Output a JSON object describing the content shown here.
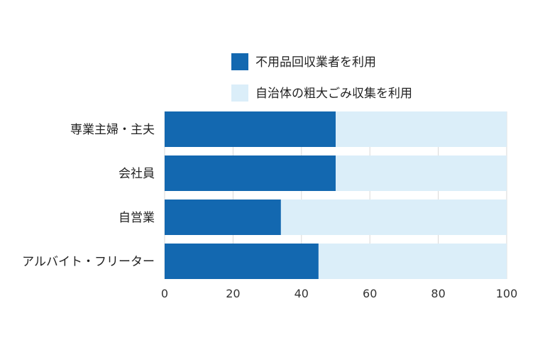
{
  "chart_data": {
    "type": "bar",
    "orientation": "horizontal",
    "stacked": true,
    "categories": [
      "専業主婦・主夫",
      "会社員",
      "自営業",
      "アルバイト・フリーター"
    ],
    "series": [
      {
        "name": "不用品回収業者を利用",
        "values": [
          50,
          50,
          34,
          45
        ],
        "color": "#1368b0"
      },
      {
        "name": "自治体の粗大ごみ収集を利用",
        "values": [
          50,
          50,
          66,
          55
        ],
        "color": "#dbeef9"
      }
    ],
    "xlim": [
      0,
      100
    ],
    "xticks": [
      "0",
      "20",
      "40",
      "60",
      "80",
      "100"
    ],
    "grid": true,
    "legend_position": "top"
  }
}
